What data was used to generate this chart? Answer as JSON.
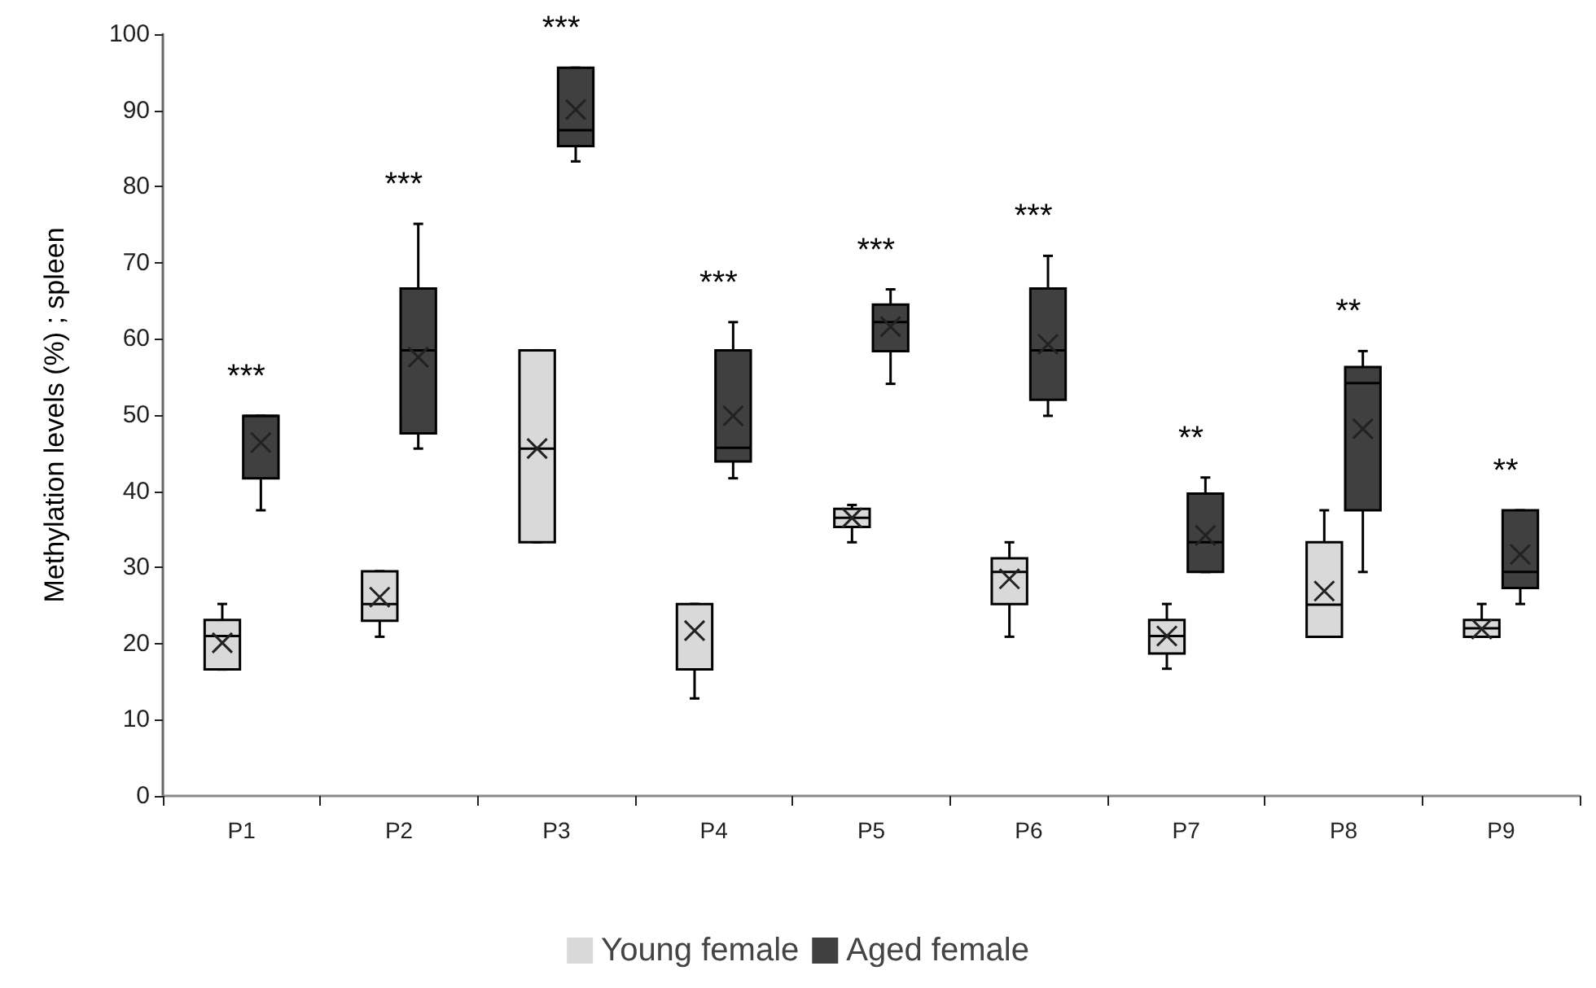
{
  "chart_data": {
    "type": "box",
    "ylabel": "Methylation levels (%) ; spleen",
    "categories": [
      "P1",
      "P2",
      "P3",
      "P4",
      "P5",
      "P6",
      "P7",
      "P8",
      "P9"
    ],
    "ylim": [
      0,
      100
    ],
    "yticks": [
      0,
      10,
      20,
      30,
      40,
      50,
      60,
      70,
      80,
      90,
      100
    ],
    "grid": false,
    "legend": "bottom",
    "series": [
      {
        "name": "Young female",
        "color": "#d9d9d9",
        "boxes": [
          {
            "low": 16.6,
            "q1": 16.6,
            "median": 21.0,
            "q3": 23.1,
            "high": 25.2,
            "mean": 20.1
          },
          {
            "low": 20.9,
            "q1": 23.0,
            "median": 25.2,
            "q3": 29.5,
            "high": 29.5,
            "mean": 26.1
          },
          {
            "low": 33.3,
            "q1": 33.3,
            "median": 45.6,
            "q3": 58.5,
            "high": 58.5,
            "mean": 45.6
          },
          {
            "low": 12.8,
            "q1": 16.6,
            "median": 16.6,
            "q3": 25.2,
            "high": 25.2,
            "mean": 21.7
          },
          {
            "low": 33.3,
            "q1": 35.3,
            "median": 36.5,
            "q3": 37.7,
            "high": 38.2,
            "mean": 36.5
          },
          {
            "low": 20.9,
            "q1": 25.2,
            "median": 29.4,
            "q3": 31.2,
            "high": 33.3,
            "mean": 28.5
          },
          {
            "low": 16.7,
            "q1": 18.7,
            "median": 21.0,
            "q3": 23.1,
            "high": 25.2,
            "mean": 21.0
          },
          {
            "low": 20.9,
            "q1": 20.9,
            "median": 25.1,
            "q3": 33.3,
            "high": 37.5,
            "mean": 26.9
          },
          {
            "low": 20.9,
            "q1": 20.9,
            "median": 22.0,
            "q3": 23.1,
            "high": 25.2,
            "mean": 21.9
          }
        ]
      },
      {
        "name": "Aged female",
        "color": "#404040",
        "boxes": [
          {
            "low": 37.5,
            "q1": 41.7,
            "median": 49.9,
            "q3": 49.9,
            "high": 49.9,
            "mean": 46.4
          },
          {
            "low": 45.6,
            "q1": 47.6,
            "median": 58.5,
            "q3": 66.6,
            "high": 75.1,
            "mean": 57.6
          },
          {
            "low": 83.3,
            "q1": 85.3,
            "median": 87.4,
            "q3": 95.6,
            "high": 95.6,
            "mean": 90.1
          },
          {
            "low": 41.7,
            "q1": 43.9,
            "median": 45.7,
            "q3": 58.5,
            "high": 62.2,
            "mean": 49.9
          },
          {
            "low": 54.1,
            "q1": 58.4,
            "median": 62.2,
            "q3": 64.5,
            "high": 66.5,
            "mean": 61.6
          },
          {
            "low": 49.9,
            "q1": 52.0,
            "median": 58.5,
            "q3": 66.6,
            "high": 70.9,
            "mean": 59.3
          },
          {
            "low": 29.4,
            "q1": 29.4,
            "median": 33.3,
            "q3": 39.7,
            "high": 41.8,
            "mean": 34.2
          },
          {
            "low": 29.4,
            "q1": 37.5,
            "median": 54.2,
            "q3": 56.3,
            "high": 58.4,
            "mean": 48.2
          },
          {
            "low": 25.2,
            "q1": 27.3,
            "median": 29.4,
            "q3": 37.5,
            "high": 37.5,
            "mean": 31.7
          }
        ]
      }
    ],
    "annotations": [
      "***",
      "***",
      "***",
      "***",
      "***",
      "***",
      "**",
      "**",
      "**"
    ]
  }
}
